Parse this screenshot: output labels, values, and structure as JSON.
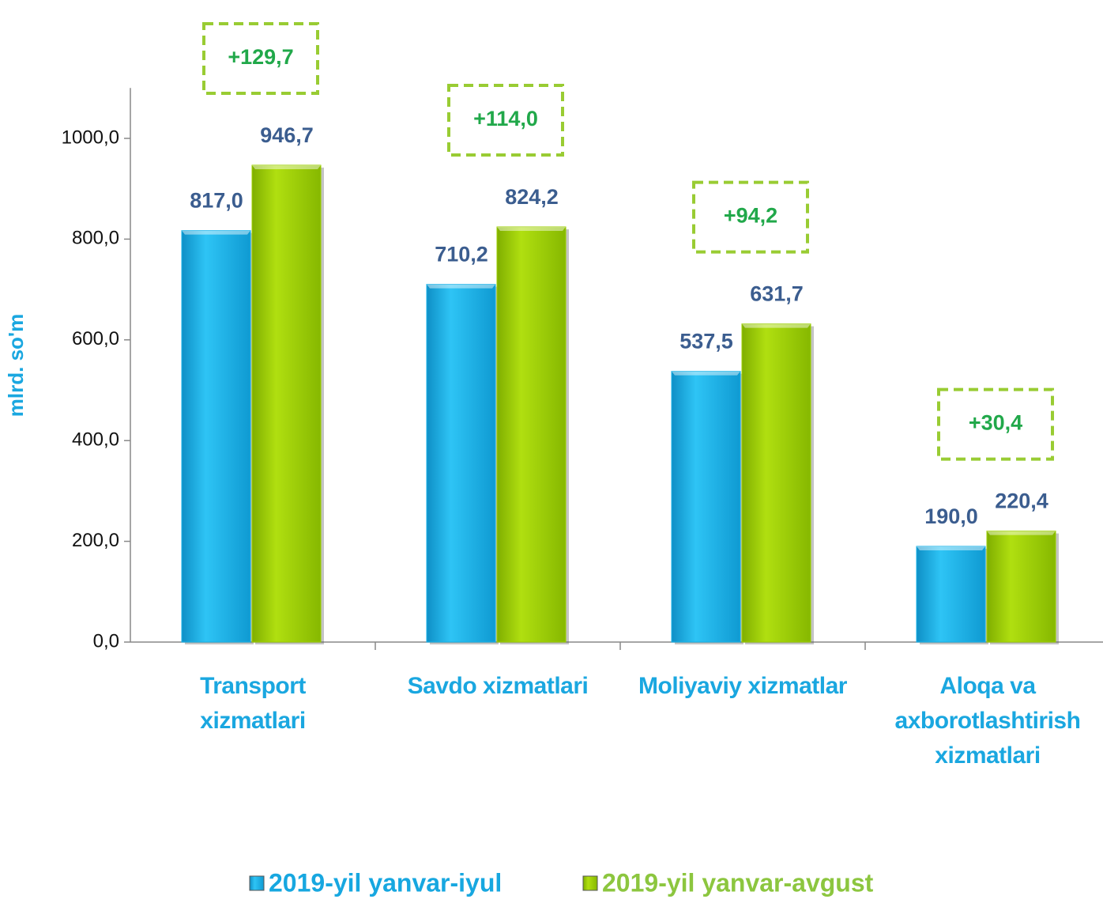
{
  "chart_data": {
    "type": "bar",
    "y_label": "mlrd. so'm",
    "categories": [
      "Transport\nxizmatlari",
      "Savdo xizmatlari",
      "Moliyaviy  xizmatlar",
      "Aloqa va\naxborotlashtirish\nxizmatlari"
    ],
    "series": [
      {
        "name": "2019-yil yanvar-iyul",
        "color": "#17b2e8",
        "values": [
          817.0,
          710.2,
          537.5,
          190.0
        ],
        "value_labels": [
          "817,0",
          "710,2",
          "537,5",
          "190,0"
        ]
      },
      {
        "name": "2019-yil yanvar-avgust",
        "color": "#9ccf00",
        "values": [
          946.7,
          824.2,
          631.7,
          220.4
        ],
        "value_labels": [
          "946,7",
          "824,2",
          "631,7",
          "220,4"
        ]
      }
    ],
    "annotations": [
      "+129,7",
      "+114,0",
      "+94,2",
      "+30,4"
    ],
    "ylim": [
      0,
      1100
    ],
    "yticks": [
      {
        "value": 0,
        "label": "0,0"
      },
      {
        "value": 200,
        "label": "200,0"
      },
      {
        "value": 400,
        "label": "400,0"
      },
      {
        "value": 600,
        "label": "600,0"
      },
      {
        "value": 800,
        "label": "800,0"
      },
      {
        "value": 1000,
        "label": "1000,0"
      }
    ],
    "legend": "bottom"
  }
}
